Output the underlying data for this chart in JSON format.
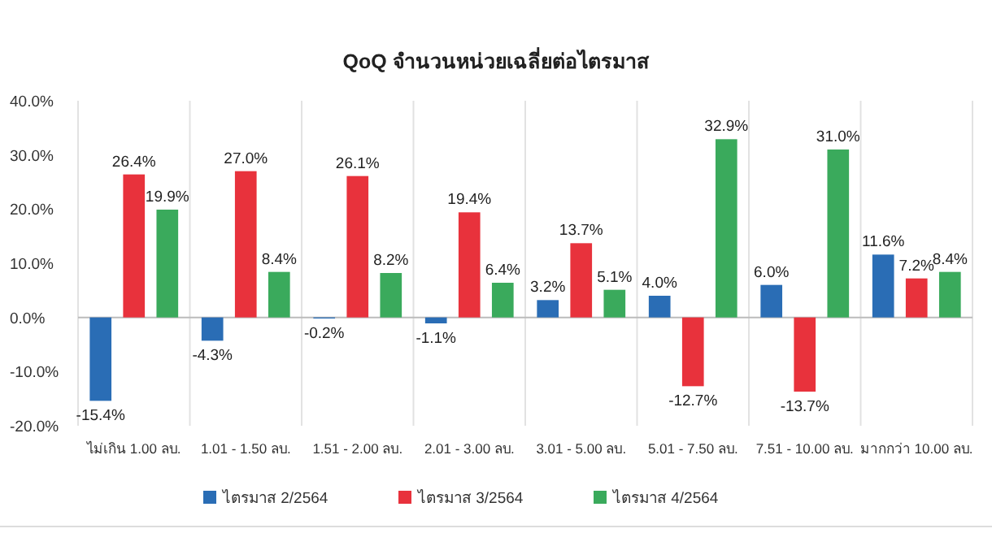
{
  "chart_data": {
    "type": "bar",
    "title": "QoQ จำนวนหน่วยเฉลี่ยต่อไตรมาส",
    "categories": [
      "ไม่เกิน 1.00 ลบ.",
      "1.01 - 1.50 ลบ.",
      "1.51 - 2.00 ลบ.",
      "2.01 - 3.00 ลบ.",
      "3.01 - 5.00 ลบ.",
      "5.01 - 7.50 ลบ.",
      "7.51 - 10.00 ลบ.",
      "มากกว่า 10.00 ลบ."
    ],
    "series": [
      {
        "name": "ไตรมาส 2/2564",
        "color": "#2a6db5",
        "values": [
          -15.4,
          -4.3,
          -0.2,
          -1.1,
          3.2,
          4.0,
          6.0,
          11.6
        ],
        "value_labels": [
          "-15.4%",
          "-4.3%",
          "-0.2%",
          "-1.1%",
          "3.2%",
          "4.0%",
          "6.0%",
          "11.6%"
        ]
      },
      {
        "name": "ไตรมาส 3/2564",
        "color": "#e8323c",
        "values": [
          26.4,
          27.0,
          26.1,
          19.4,
          13.7,
          -12.7,
          -13.7,
          7.2
        ],
        "value_labels": [
          "26.4%",
          "27.0%",
          "26.1%",
          "19.4%",
          "13.7%",
          "-12.7%",
          "-13.7%",
          "7.2%"
        ]
      },
      {
        "name": "ไตรมาส 4/2564",
        "color": "#3aaa5c",
        "values": [
          19.9,
          8.4,
          8.2,
          6.4,
          5.1,
          32.9,
          31.0,
          8.4
        ],
        "value_labels": [
          "19.9%",
          "8.4%",
          "8.2%",
          "6.4%",
          "5.1%",
          "32.9%",
          "31.0%",
          "8.4%"
        ]
      }
    ],
    "ylim": [
      -20,
      40
    ],
    "yticks": [
      {
        "value": -20,
        "label": "-20.0%"
      },
      {
        "value": -10,
        "label": "-10.0%"
      },
      {
        "value": 0,
        "label": "0.0%"
      },
      {
        "value": 10,
        "label": "10.0%"
      },
      {
        "value": 20,
        "label": "20.0%"
      },
      {
        "value": 30,
        "label": "30.0%"
      },
      {
        "value": 40,
        "label": "40.0%"
      }
    ],
    "grid": "x",
    "legend": "bottom"
  }
}
